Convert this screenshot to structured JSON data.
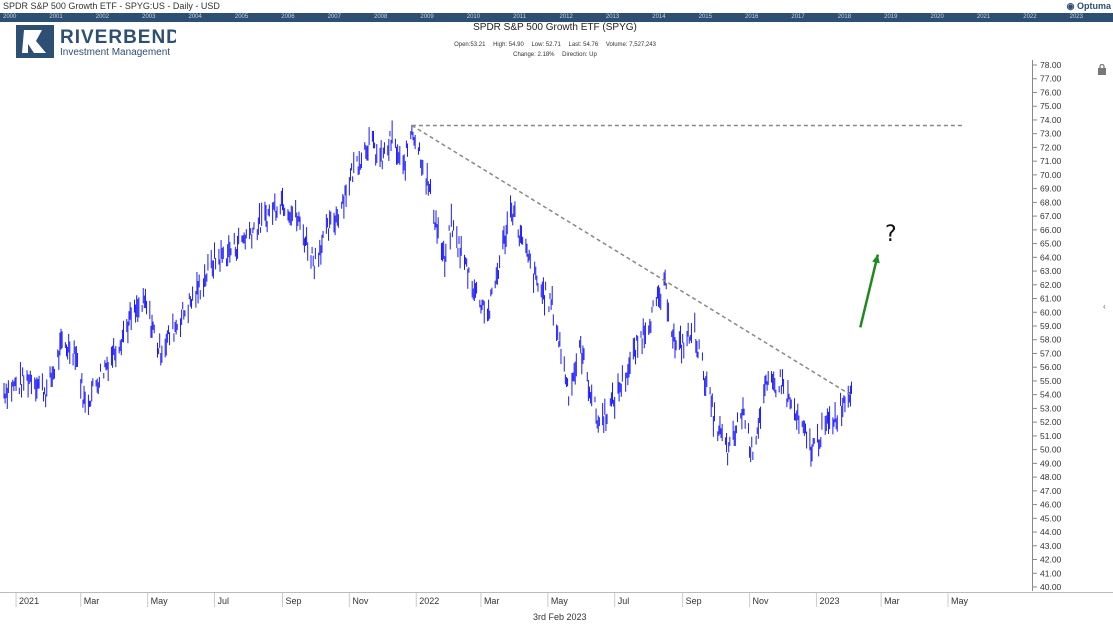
{
  "window_title": "SPDR S&P 500 Growth ETF - SPYG:US - Daily - USD",
  "brand": "Optuma",
  "timeline_years": [
    "2000",
    "2001",
    "2002",
    "2003",
    "2004",
    "2005",
    "2006",
    "2007",
    "2008",
    "2009",
    "2010",
    "2011",
    "2012",
    "2013",
    "2014",
    "2015",
    "2016",
    "2017",
    "2018",
    "2019",
    "2020",
    "2021",
    "2022",
    "2023"
  ],
  "logo": {
    "name": "RIVERBEND",
    "sub": "Investment Management"
  },
  "header": {
    "title": "SPDR S&P 500 Growth ETF (SPYG)",
    "open": "Open:53.21",
    "high": "High: 54.90",
    "low": "Low: 52.71",
    "last": "Last: 54.76",
    "volume": "Volume: 7,527,243",
    "change": "Change: 2.18%",
    "direction": "Direction: Up"
  },
  "annotation_question": "?",
  "footer_date": "3rd Feb 2023",
  "colors": {
    "price": "#1a1aff",
    "trendline": "#888888",
    "arrow": "#1e8a1e",
    "timeline": "#2d4f73"
  },
  "chart_data": {
    "type": "line",
    "subtype": "ohlc-bars",
    "title": "SPDR S&P 500 Growth ETF (SPYG)",
    "ylim": [
      40,
      78
    ],
    "y_ticks": [
      "78.00",
      "77.00",
      "76.00",
      "75.00",
      "74.00",
      "73.00",
      "72.00",
      "71.00",
      "70.00",
      "69.00",
      "68.00",
      "67.00",
      "66.00",
      "65.00",
      "64.00",
      "63.00",
      "62.00",
      "61.00",
      "60.00",
      "59.00",
      "58.00",
      "57.00",
      "56.00",
      "55.00",
      "54.00",
      "53.00",
      "52.00",
      "51.00",
      "50.00",
      "49.00",
      "48.00",
      "47.00",
      "46.00",
      "45.00",
      "44.00",
      "43.00",
      "42.00",
      "41.00",
      "40.00"
    ],
    "x_ticks": [
      "2021",
      "Mar",
      "May",
      "Jul",
      "Sep",
      "Nov",
      "2022",
      "Mar",
      "May",
      "Jul",
      "Sep",
      "Nov",
      "2023",
      "Mar",
      "May"
    ],
    "x_range": [
      "2020-12-21",
      "2023-06-01"
    ],
    "series": [
      {
        "values": [
          [
            "2020-12-21",
            54.3
          ],
          [
            "2021-01-04",
            54.8
          ],
          [
            "2021-01-15",
            55.3
          ],
          [
            "2021-01-29",
            54.2
          ],
          [
            "2021-02-12",
            57.6
          ],
          [
            "2021-02-24",
            57.3
          ],
          [
            "2021-03-05",
            53.2
          ],
          [
            "2021-03-19",
            55.5
          ],
          [
            "2021-04-01",
            57.3
          ],
          [
            "2021-04-16",
            59.6
          ],
          [
            "2021-04-29",
            60.6
          ],
          [
            "2021-05-12",
            57.2
          ],
          [
            "2021-05-28",
            59.2
          ],
          [
            "2021-06-15",
            61.5
          ],
          [
            "2021-06-30",
            63.7
          ],
          [
            "2021-07-16",
            64.5
          ],
          [
            "2021-07-30",
            65.6
          ],
          [
            "2021-08-16",
            66.8
          ],
          [
            "2021-08-31",
            68.3
          ],
          [
            "2021-09-15",
            66.7
          ],
          [
            "2021-09-30",
            63.7
          ],
          [
            "2021-10-05",
            64.8
          ],
          [
            "2021-10-22",
            67.3
          ],
          [
            "2021-11-05",
            70.5
          ],
          [
            "2021-11-19",
            72.5
          ],
          [
            "2021-11-30",
            71.0
          ],
          [
            "2021-12-10",
            72.6
          ],
          [
            "2021-12-20",
            70.2
          ],
          [
            "2021-12-28",
            73.5
          ],
          [
            "2022-01-05",
            71.5
          ],
          [
            "2022-01-14",
            68.5
          ],
          [
            "2022-01-27",
            63.5
          ],
          [
            "2022-02-02",
            66.3
          ],
          [
            "2022-02-24",
            61.5
          ],
          [
            "2022-03-08",
            59.9
          ],
          [
            "2022-03-29",
            67.8
          ],
          [
            "2022-04-08",
            64.9
          ],
          [
            "2022-04-22",
            61.9
          ],
          [
            "2022-05-05",
            60.5
          ],
          [
            "2022-05-20",
            54.3
          ],
          [
            "2022-05-31",
            57.3
          ],
          [
            "2022-06-16",
            51.9
          ],
          [
            "2022-06-30",
            53.5
          ],
          [
            "2022-07-15",
            56.2
          ],
          [
            "2022-07-29",
            58.9
          ],
          [
            "2022-08-16",
            61.8
          ],
          [
            "2022-08-26",
            57.2
          ],
          [
            "2022-09-12",
            58.6
          ],
          [
            "2022-09-30",
            52.1
          ],
          [
            "2022-10-13",
            49.7
          ],
          [
            "2022-10-26",
            53.0
          ],
          [
            "2022-11-03",
            49.8
          ],
          [
            "2022-11-15",
            54.3
          ],
          [
            "2022-11-30",
            55.0
          ],
          [
            "2022-12-15",
            52.0
          ],
          [
            "2022-12-28",
            50.0
          ],
          [
            "2023-01-06",
            51.3
          ],
          [
            "2023-01-20",
            52.6
          ],
          [
            "2023-02-03",
            54.76
          ]
        ]
      }
    ],
    "trendlines": [
      {
        "style": "dashed",
        "from": [
          "2021-12-28",
          73.6
        ],
        "to": [
          "2023-05-15",
          73.6
        ]
      },
      {
        "style": "dashed",
        "from": [
          "2021-12-28",
          73.6
        ],
        "to": [
          "2023-02-01",
          54.0
        ]
      }
    ],
    "arrow": {
      "from": [
        "2023-02-10",
        58.9
      ],
      "to": [
        "2023-02-26",
        64.2
      ]
    }
  }
}
